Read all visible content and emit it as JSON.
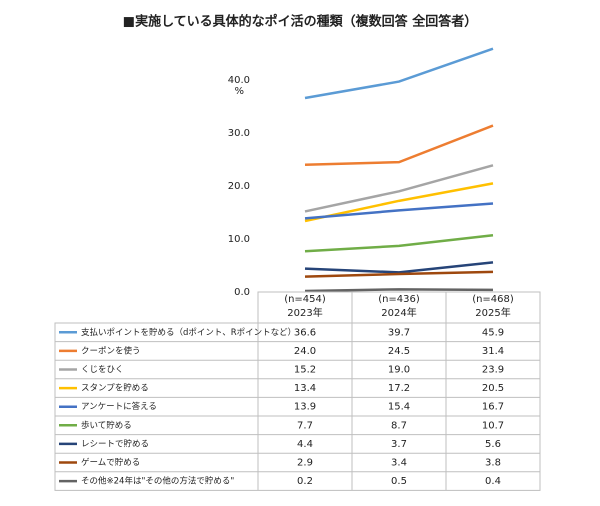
{
  "chart_data": {
    "type": "line",
    "title": "■実施している具体的なポイ活の種類（複数回答 全回答者）",
    "categories": [
      "2023年",
      "2024年",
      "2025年"
    ],
    "n_labels": [
      "(n=454)",
      "(n=436)",
      "(n=468)"
    ],
    "y_unit": "%",
    "ylim": [
      0,
      40
    ],
    "yticks": [
      {
        "value": 0,
        "label": "0.0"
      },
      {
        "value": 10,
        "label": "10.0"
      },
      {
        "value": 20,
        "label": "20.0"
      },
      {
        "value": 30,
        "label": "30.0"
      },
      {
        "value": 40,
        "label": "40.0"
      }
    ],
    "series": [
      {
        "name": "支払いポイントを貯める（dポイント、Rポイントなど）",
        "color": "#5b9bd5",
        "values": [
          36.6,
          39.7,
          45.9
        ],
        "value_labels": [
          "36.6",
          "39.7",
          "45.9"
        ]
      },
      {
        "name": "クーポンを使う",
        "color": "#ed7d31",
        "values": [
          24.0,
          24.5,
          31.4
        ],
        "value_labels": [
          "24.0",
          "24.5",
          "31.4"
        ]
      },
      {
        "name": "くじをひく",
        "color": "#a5a5a5",
        "values": [
          15.2,
          19.0,
          23.9
        ],
        "value_labels": [
          "15.2",
          "19.0",
          "23.9"
        ]
      },
      {
        "name": "スタンプを貯める",
        "color": "#ffc000",
        "values": [
          13.4,
          17.2,
          20.5
        ],
        "value_labels": [
          "13.4",
          "17.2",
          "20.5"
        ]
      },
      {
        "name": "アンケートに答える",
        "color": "#4472c4",
        "values": [
          13.9,
          15.4,
          16.7
        ],
        "value_labels": [
          "13.9",
          "15.4",
          "16.7"
        ]
      },
      {
        "name": "歩いて貯める",
        "color": "#70ad47",
        "values": [
          7.7,
          8.7,
          10.7
        ],
        "value_labels": [
          "7.7",
          "8.7",
          "10.7"
        ]
      },
      {
        "name": "レシートで貯める",
        "color": "#264478",
        "values": [
          4.4,
          3.7,
          5.6
        ],
        "value_labels": [
          "4.4",
          "3.7",
          "5.6"
        ]
      },
      {
        "name": "ゲームで貯める",
        "color": "#9e480e",
        "values": [
          2.9,
          3.4,
          3.8
        ],
        "value_labels": [
          "2.9",
          "3.4",
          "3.8"
        ]
      },
      {
        "name": "その他※24年は\"その他の方法で貯める\"",
        "color": "#636363",
        "values": [
          0.2,
          0.5,
          0.4
        ],
        "value_labels": [
          "0.2",
          "0.5",
          "0.4"
        ]
      }
    ]
  }
}
